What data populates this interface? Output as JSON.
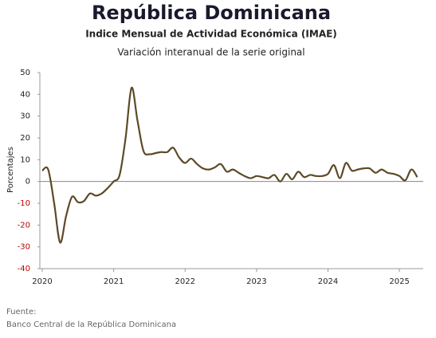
{
  "chart_data": {
    "type": "line",
    "title": "República Dominicana",
    "subtitle": "Indice Mensual de Actividad Económica (IMAE)",
    "subtitle2": "Variación interanual de la serie original",
    "y_label": "Porcentajes",
    "source_label": "Fuente:",
    "source": "Banco Central de la República Dominicana",
    "x": [
      2020,
      2020.083,
      2020.167,
      2020.25,
      2020.333,
      2020.417,
      2020.5,
      2020.583,
      2020.667,
      2020.75,
      2020.833,
      2020.917,
      2021,
      2021.083,
      2021.167,
      2021.25,
      2021.333,
      2021.417,
      2021.5,
      2021.583,
      2021.667,
      2021.75,
      2021.833,
      2021.917,
      2022,
      2022.083,
      2022.167,
      2022.25,
      2022.333,
      2022.417,
      2022.5,
      2022.583,
      2022.667,
      2022.75,
      2022.833,
      2022.917,
      2023,
      2023.083,
      2023.167,
      2023.25,
      2023.333,
      2023.417,
      2023.5,
      2023.583,
      2023.667,
      2023.75,
      2023.833,
      2023.917,
      2024,
      2024.083,
      2024.167,
      2024.25,
      2024.333,
      2024.417,
      2024.5,
      2024.583,
      2024.667,
      2024.75,
      2024.833,
      2024.917,
      2025,
      2025.083,
      2025.167,
      2025.25
    ],
    "series": [
      {
        "color": "#5c4a26",
        "values": [
          5,
          5.5,
          -10,
          -28,
          -16,
          -7,
          -9.5,
          -9,
          -5.5,
          -6.5,
          -5.5,
          -3,
          0,
          3,
          20,
          43,
          28,
          14,
          12.5,
          13,
          13.5,
          13.5,
          15.5,
          11,
          8.5,
          10.5,
          8,
          6,
          5.5,
          6.5,
          8,
          4.5,
          5.5,
          4,
          2.5,
          1.5,
          2.5,
          2,
          1.5,
          3,
          0,
          3.5,
          1,
          4.5,
          2,
          3,
          2.5,
          2.5,
          3.5,
          7.5,
          1.5,
          8.5,
          5,
          5.5,
          6,
          6,
          4,
          5.5,
          4,
          3.5,
          2.5,
          0.5,
          5.5,
          2
        ]
      }
    ],
    "xlim": [
      2020,
      2025.3
    ],
    "xticks": [
      2020,
      2021,
      2022,
      2023,
      2024,
      2025
    ],
    "ylim": [
      -40,
      50
    ],
    "yticks": [
      -40,
      -30,
      -20,
      -10,
      0,
      10,
      20,
      30,
      40,
      50
    ],
    "negative_tick_color": "#c00000",
    "zero_line": true
  }
}
